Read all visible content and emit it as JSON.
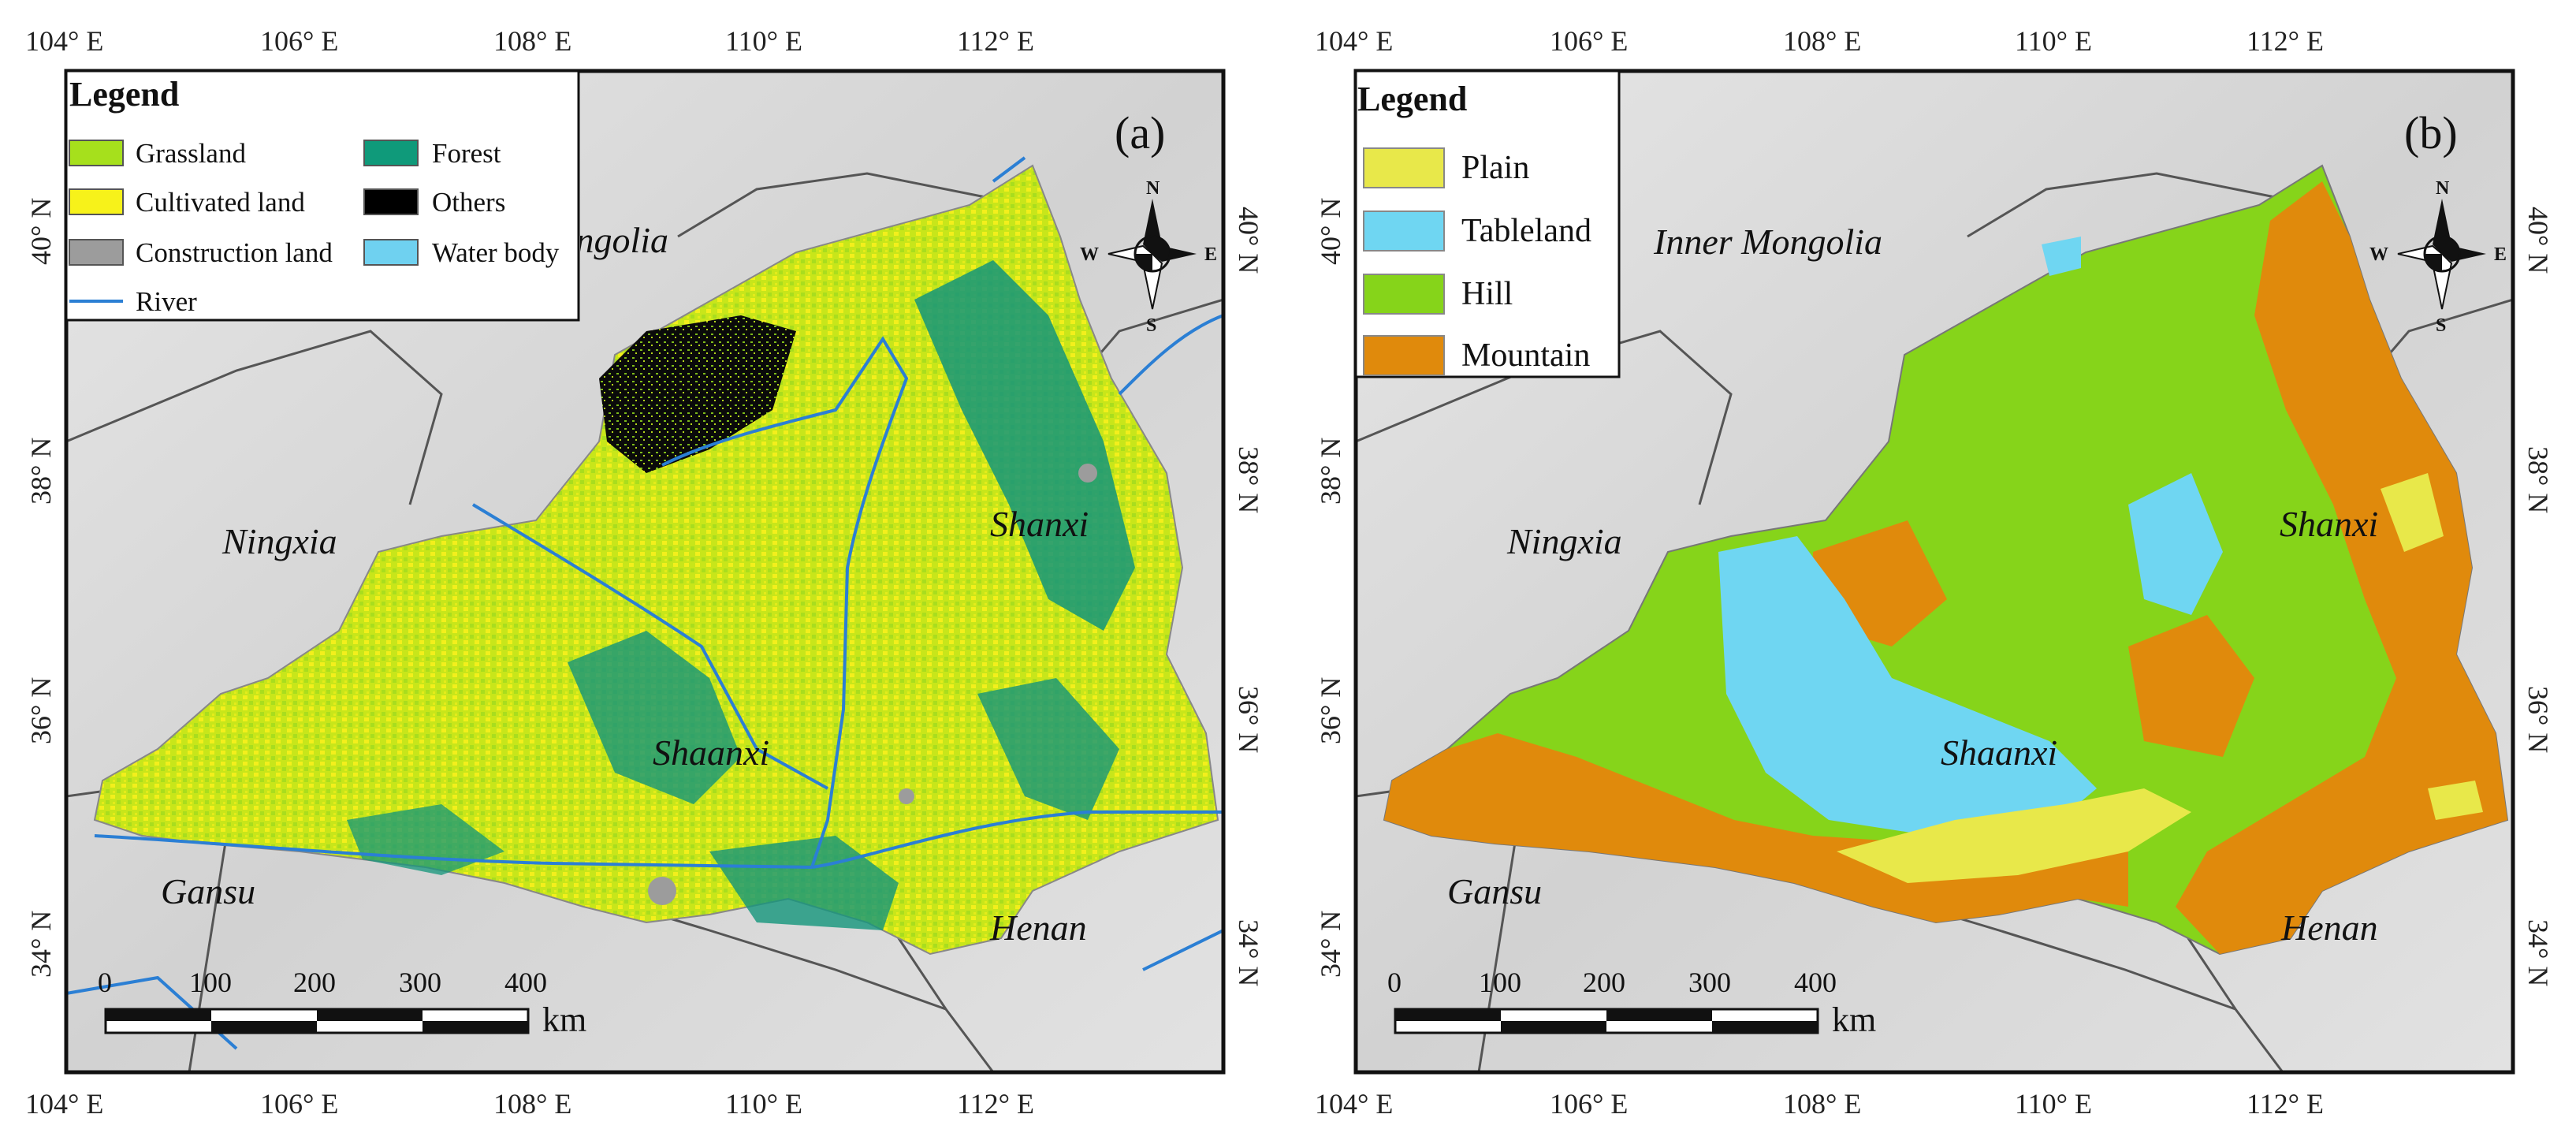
{
  "panels": [
    {
      "id": "a",
      "letter": "(a)",
      "legend": {
        "title": "Legend",
        "items": [
          {
            "label": "Grassland",
            "color": "#a6e01c"
          },
          {
            "label": "Forest",
            "color": "#0f9a7a"
          },
          {
            "label": "Cultivated land",
            "color": "#f7f21a"
          },
          {
            "label": "Others",
            "color": "#000000"
          },
          {
            "label": "Construction land",
            "color": "#9c9c9c"
          },
          {
            "label": "Water body",
            "color": "#6fd1f0"
          },
          {
            "label": "River",
            "color": "#2b7fd4"
          }
        ]
      },
      "provinces": [
        "Inner Mongolia",
        "Ningxia",
        "Shanxi",
        "Shaanxi",
        "Gansu",
        "Henan"
      ]
    },
    {
      "id": "b",
      "letter": "(b)",
      "legend": {
        "title": "Legend",
        "items": [
          {
            "label": "Plain",
            "color": "#e8e84a"
          },
          {
            "label": "Tableland",
            "color": "#6fd6f2"
          },
          {
            "label": "Hill",
            "color": "#86d41a"
          },
          {
            "label": "Mountain",
            "color": "#e08a0c"
          }
        ]
      },
      "provinces": [
        "Inner Mongolia",
        "Ningxia",
        "Shanxi",
        "Shaanxi",
        "Gansu",
        "Henan"
      ]
    }
  ],
  "axes": {
    "x_ticks": [
      "104° E",
      "106° E",
      "108° E",
      "110° E",
      "112° E"
    ],
    "y_ticks": [
      "40° N",
      "38° N",
      "36° N",
      "34° N"
    ]
  },
  "scale_bar": {
    "ticks": [
      "0",
      "100",
      "200",
      "300",
      "400"
    ],
    "unit": "km"
  },
  "north_arrow": {
    "n": "N",
    "s": "S",
    "e": "E",
    "w": "W"
  }
}
